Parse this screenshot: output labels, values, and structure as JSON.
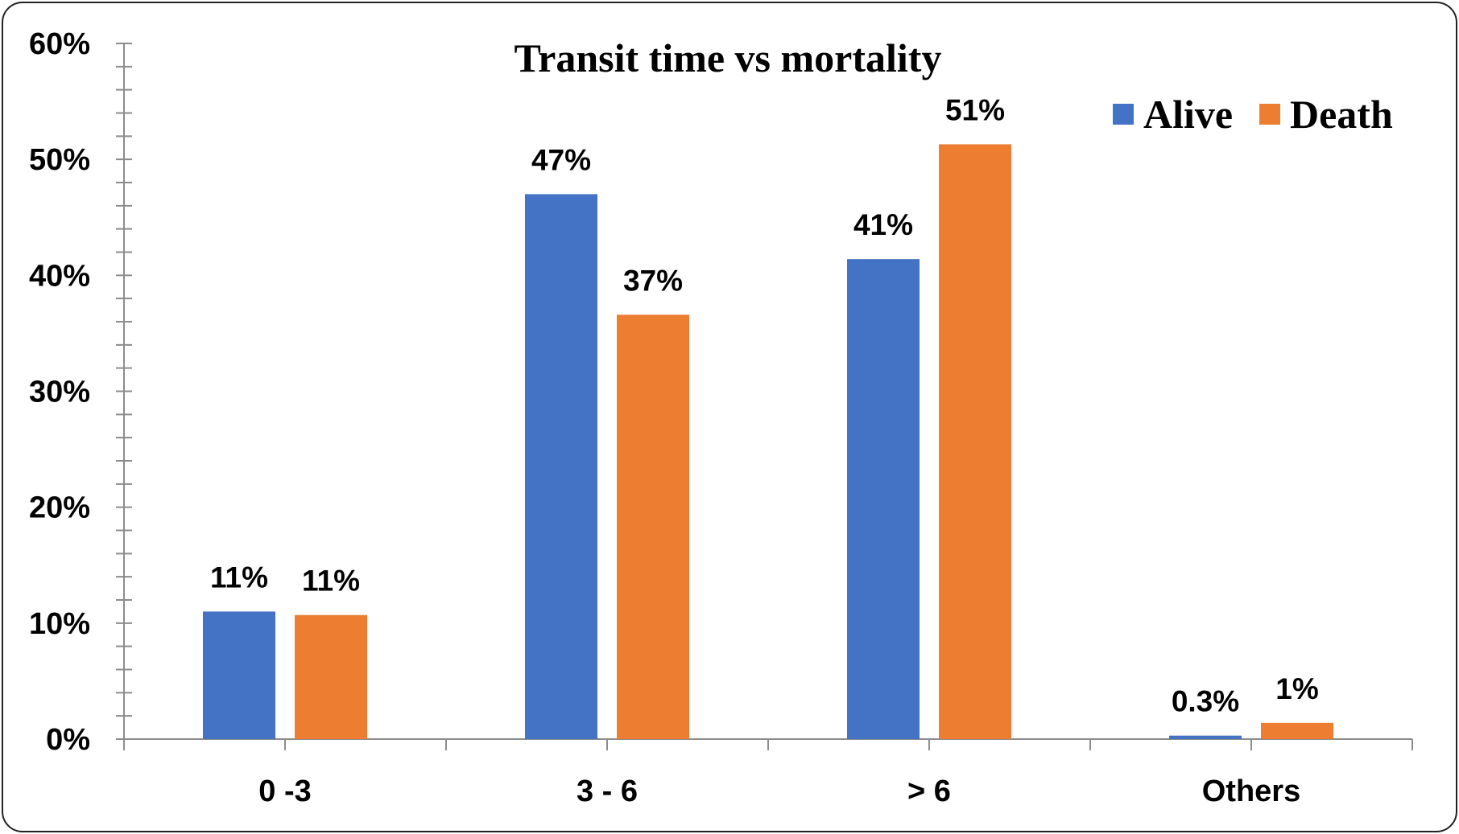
{
  "chart_data": {
    "type": "bar",
    "title": "Transit time vs mortality",
    "categories": [
      "0 -3",
      "3 - 6",
      "> 6",
      "Others"
    ],
    "series": [
      {
        "name": "Alive",
        "color": "#4472C4",
        "values": [
          11,
          47,
          41.4,
          0.3
        ],
        "labels": [
          "11%",
          "47%",
          "41%",
          "0.3%"
        ]
      },
      {
        "name": "Death",
        "color": "#ED7D31",
        "values": [
          10.7,
          36.6,
          51.3,
          1.4
        ],
        "labels": [
          "11%",
          "37%",
          "51%",
          "1%"
        ]
      }
    ],
    "ylim": [
      0,
      60
    ],
    "yticks": [
      0,
      10,
      20,
      30,
      40,
      50,
      60
    ],
    "ytick_labels": [
      "0%",
      "10%",
      "20%",
      "30%",
      "40%",
      "50%",
      "60%"
    ],
    "xlabel": "",
    "ylabel": "",
    "grid": false,
    "legend_position": "top-right"
  }
}
